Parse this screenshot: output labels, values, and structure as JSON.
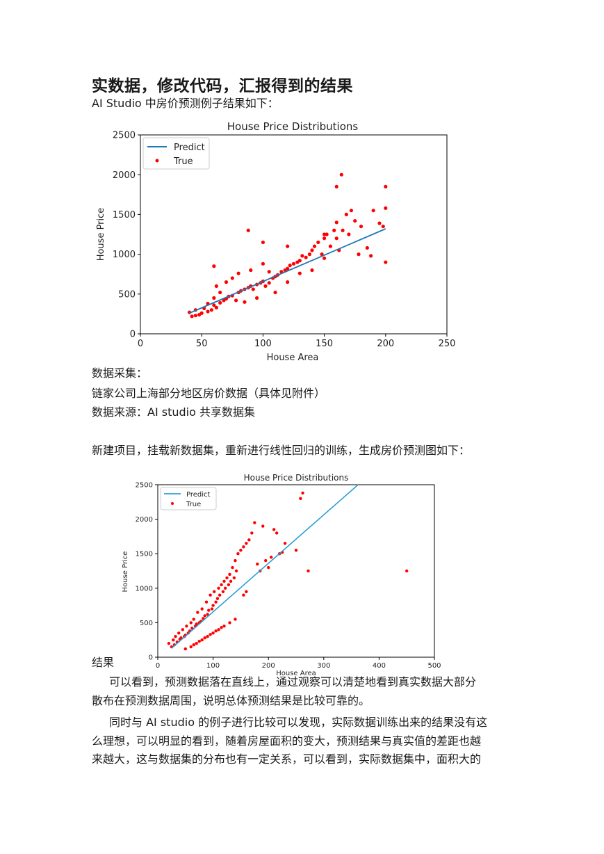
{
  "heading": "实数据，修改代码，汇报得到的结果",
  "intro": "AI Studio 中房价预测例子结果如下：",
  "p_collect_label": "数据采集：",
  "p_collect_desc": "链家公司上海部分地区房价数据（具体见附件）",
  "p_source": "数据来源：AI studio 共享数据集",
  "p_new_project": "新建项目，挂载新数据集，重新进行线性回归的训练，生成房价预测图如下：",
  "result_label": "结果",
  "result_para1_line1": "可以看到，预测数据落在直线上，通过观察可以清楚地看到真实数据大部分",
  "result_para1_line2": "散布在预测数据周围，说明总体预测结果是比较可靠的。",
  "result_para2_line1": "同时与 AI studio 的例子进行比较可以发现，实际数据训练出来的结果没有这",
  "result_para2_line2": "么理想，可以明显的看到，随着房屋面积的变大，预测结果与真实值的差距也越",
  "result_para2_line3": "来越大，这与数据集的分布也有一定关系，可以看到，实际数据集中，面积大的",
  "colors": {
    "predict": "#1f77b4",
    "predict2": "#2a9fd6",
    "true": "#ff0000"
  },
  "chart_data": [
    {
      "type": "scatter",
      "title": "House Price Distributions",
      "xlabel": "House Area",
      "ylabel": "House Price",
      "xlim": [
        0,
        250
      ],
      "ylim": [
        0,
        2500
      ],
      "xticks": [
        0,
        50,
        100,
        150,
        200,
        250
      ],
      "yticks": [
        0,
        500,
        1000,
        1500,
        2000,
        2500
      ],
      "legend": {
        "placement": "top-left",
        "entries": [
          "Predict",
          "True"
        ]
      },
      "series": [
        {
          "name": "Predict",
          "kind": "line",
          "x": [
            40,
            200
          ],
          "y": [
            260,
            1320
          ]
        },
        {
          "name": "True",
          "kind": "points",
          "x": [
            40,
            42,
            45,
            45,
            48,
            50,
            52,
            55,
            55,
            58,
            60,
            60,
            62,
            62,
            65,
            65,
            68,
            70,
            70,
            72,
            75,
            75,
            78,
            80,
            80,
            82,
            85,
            85,
            88,
            90,
            90,
            92,
            95,
            95,
            98,
            100,
            100,
            102,
            105,
            105,
            108,
            110,
            110,
            112,
            115,
            118,
            120,
            120,
            122,
            125,
            128,
            130,
            130,
            132,
            135,
            138,
            140,
            140,
            142,
            145,
            148,
            150,
            150,
            152,
            155,
            158,
            160,
            160,
            162,
            165,
            168,
            170,
            172,
            175,
            178,
            180,
            185,
            188,
            190,
            195,
            198,
            200,
            200,
            200,
            160,
            164,
            150,
            88,
            60,
            100,
            120
          ],
          "y": [
            270,
            220,
            230,
            300,
            240,
            260,
            320,
            280,
            380,
            300,
            360,
            450,
            330,
            600,
            390,
            520,
            420,
            440,
            650,
            470,
            480,
            700,
            420,
            520,
            760,
            540,
            560,
            400,
            580,
            600,
            800,
            560,
            620,
            450,
            640,
            660,
            880,
            600,
            640,
            780,
            700,
            720,
            520,
            740,
            780,
            800,
            820,
            650,
            860,
            880,
            900,
            920,
            760,
            980,
            960,
            1000,
            1050,
            800,
            1100,
            1150,
            1000,
            1200,
            950,
            1250,
            1100,
            1300,
            1400,
            1200,
            1050,
            1300,
            1500,
            1250,
            1550,
            1420,
            1000,
            1350,
            1080,
            980,
            1550,
            1390,
            1350,
            1850,
            1580,
            900,
            1850,
            2000,
            1250,
            1300,
            850,
            1150,
            1100
          ]
        }
      ]
    },
    {
      "type": "scatter",
      "title": "House Price Distributions",
      "xlabel": "House Area",
      "ylabel": "House Price",
      "xlim": [
        0,
        500
      ],
      "ylim": [
        0,
        2500
      ],
      "xticks": [
        0,
        100,
        200,
        300,
        400,
        500
      ],
      "yticks": [
        0,
        500,
        1000,
        1500,
        2000,
        2500
      ],
      "legend": {
        "placement": "top-left",
        "entries": [
          "Predict",
          "True"
        ]
      },
      "series": [
        {
          "name": "Predict",
          "kind": "line",
          "x": [
            25,
            362
          ],
          "y": [
            130,
            2500
          ]
        },
        {
          "name": "True",
          "kind": "points",
          "x": [
            20,
            25,
            28,
            30,
            32,
            35,
            38,
            40,
            42,
            45,
            48,
            50,
            52,
            55,
            58,
            60,
            62,
            65,
            68,
            70,
            72,
            75,
            78,
            80,
            82,
            85,
            88,
            90,
            92,
            95,
            98,
            100,
            102,
            105,
            108,
            110,
            112,
            115,
            118,
            120,
            122,
            125,
            128,
            130,
            132,
            135,
            138,
            140,
            142,
            145,
            150,
            155,
            160,
            165,
            170,
            175,
            180,
            185,
            190,
            195,
            200,
            205,
            210,
            215,
            220,
            225,
            230,
            250,
            258,
            262,
            272,
            450,
            155,
            160,
            60,
            70,
            80,
            90,
            100,
            110,
            120,
            130,
            140,
            50,
            65,
            75,
            85,
            95,
            105,
            115
          ],
          "y": [
            200,
            150,
            250,
            180,
            300,
            220,
            350,
            260,
            280,
            400,
            300,
            320,
            450,
            350,
            380,
            500,
            420,
            550,
            450,
            480,
            650,
            500,
            520,
            700,
            560,
            600,
            800,
            620,
            680,
            900,
            700,
            750,
            950,
            800,
            850,
            1000,
            900,
            1050,
            950,
            1100,
            1000,
            1150,
            1050,
            1200,
            1100,
            1300,
            1150,
            1400,
            1250,
            1500,
            1550,
            1600,
            1650,
            1700,
            1800,
            1950,
            1350,
            1250,
            1900,
            1400,
            1300,
            1450,
            1850,
            1800,
            1500,
            1520,
            1650,
            1550,
            2300,
            2380,
            1250,
            1250,
            900,
            950,
            150,
            200,
            250,
            300,
            350,
            400,
            450,
            500,
            550,
            120,
            180,
            230,
            280,
            330,
            380,
            430
          ]
        }
      ]
    }
  ]
}
